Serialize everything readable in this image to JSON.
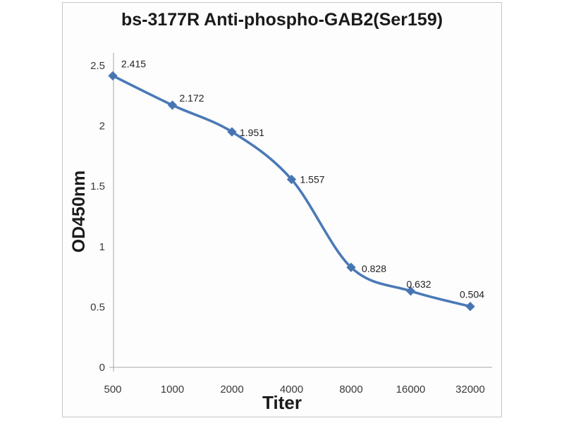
{
  "chart_data": {
    "type": "line",
    "title": "bs-3177R Anti-phospho-GAB2(Ser159)",
    "xlabel": "Titer",
    "ylabel": "OD450nm",
    "categories": [
      "500",
      "1000",
      "2000",
      "4000",
      "8000",
      "16000",
      "32000"
    ],
    "values": [
      2.415,
      2.172,
      1.951,
      1.557,
      0.828,
      0.632,
      0.504
    ],
    "data_labels": [
      "2.415",
      "2.172",
      "1.951",
      "1.557",
      "0.828",
      "0.632",
      "0.504"
    ],
    "y_tick_values": [
      0,
      0.5,
      1,
      1.5,
      2,
      2.5
    ],
    "y_tick_labels": [
      "0",
      "0.5",
      "1",
      "1.5",
      "2",
      "2.5"
    ],
    "ylim": [
      0,
      2.5
    ],
    "grid": false,
    "legend": false,
    "smooth_line": true,
    "marker": "diamond",
    "colors": {
      "series": "#4b79b7",
      "marker": "#4874b2",
      "axis": "#a6a6a6",
      "tick_text": "#3a3a3a",
      "data_label_text": "#1f1f1f",
      "frame_border": "#c6c6c6",
      "frame_background": "#fdfdfd"
    }
  }
}
